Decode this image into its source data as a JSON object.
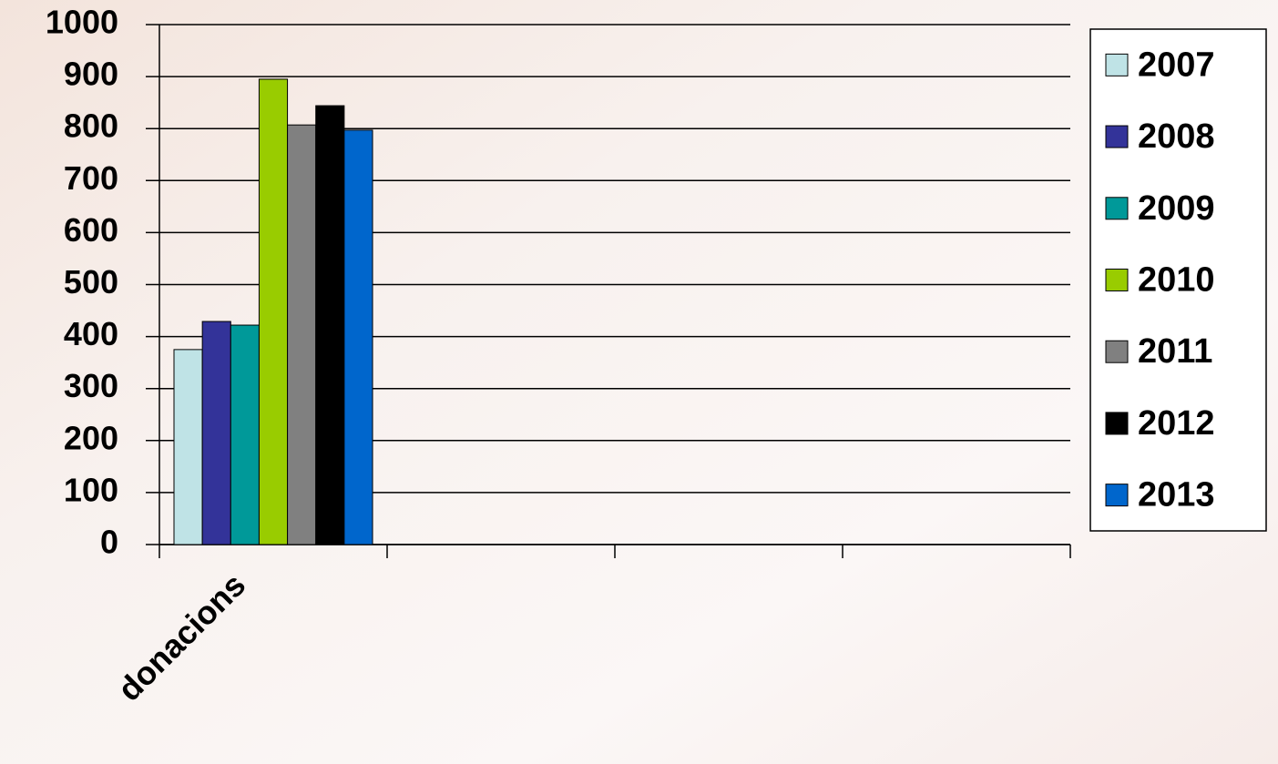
{
  "chart_data": {
    "type": "bar",
    "categories": [
      "donacions",
      null,
      null,
      null
    ],
    "series": [
      {
        "name": "2007",
        "color": "#bfe3e6",
        "values": [
          375,
          null,
          null,
          null
        ]
      },
      {
        "name": "2008",
        "color": "#333399",
        "values": [
          429,
          null,
          null,
          null
        ]
      },
      {
        "name": "2009",
        "color": "#009999",
        "values": [
          422,
          null,
          null,
          null
        ]
      },
      {
        "name": "2010",
        "color": "#99cc00",
        "values": [
          895,
          null,
          null,
          null
        ]
      },
      {
        "name": "2011",
        "color": "#808080",
        "values": [
          807,
          null,
          null,
          null
        ]
      },
      {
        "name": "2012",
        "color": "#000000",
        "values": [
          844,
          null,
          null,
          null
        ]
      },
      {
        "name": "2013",
        "color": "#0066cc",
        "values": [
          797,
          null,
          null,
          null
        ]
      }
    ],
    "ylim": [
      0,
      1000
    ],
    "yticks": [
      0,
      100,
      200,
      300,
      400,
      500,
      600,
      700,
      800,
      900,
      1000
    ],
    "grid": true,
    "legend": "right"
  }
}
